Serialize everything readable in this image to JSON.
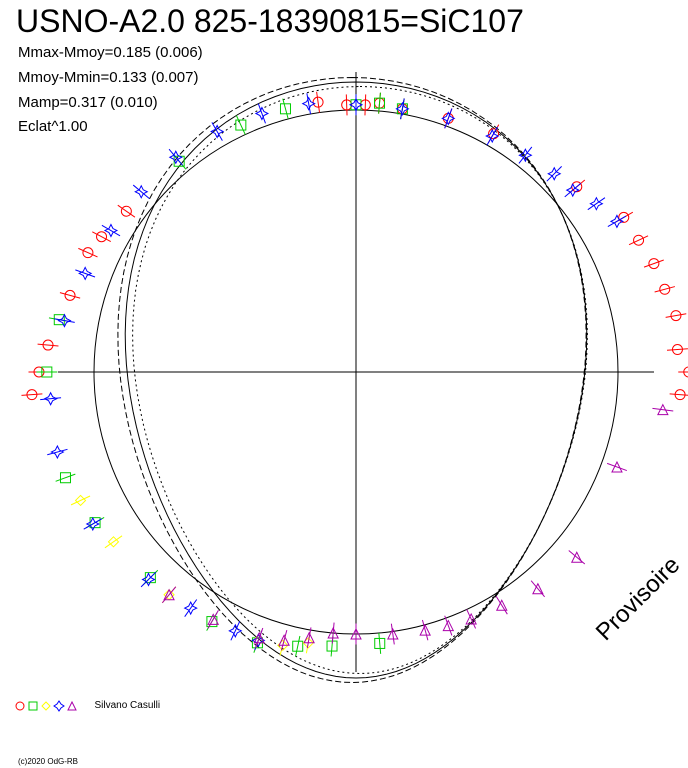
{
  "title": "USNO-A2.0 825-18390815=SiC107",
  "stats": [
    "Mmax-Mmoy=0.185 (0.006)",
    "Mmoy-Mmin=0.133 (0.007)",
    "Mamp=0.317 (0.010)",
    "Eclat^1.00"
  ],
  "legend": {
    "symbols": [
      {
        "shape": "circle",
        "color": "#ff0000",
        "icon": "circle-marker-icon"
      },
      {
        "shape": "square",
        "color": "#00cc00",
        "icon": "square-marker-icon"
      },
      {
        "shape": "diamond",
        "color": "#ffff00",
        "icon": "diamond-marker-icon"
      },
      {
        "shape": "star",
        "color": "#0000ff",
        "icon": "star-marker-icon"
      },
      {
        "shape": "triangle",
        "color": "#aa00aa",
        "icon": "triangle-marker-icon"
      }
    ],
    "observer": "Silvano Casulli"
  },
  "stamp": "Provisoire",
  "copyright": "(c)2020 OdG-RB",
  "chart_data": {
    "type": "scatter",
    "coordinate_system": "polar",
    "title": "USNO-A2.0 825-18390815=SiC107",
    "reference_circle_radius": 1.0,
    "grid": false,
    "axes": "cross",
    "series": [
      {
        "color": "#ff0000",
        "shape": "circle",
        "points": [
          [
            94,
            1.24
          ],
          [
            90,
            1.27
          ],
          [
            86,
            1.23
          ],
          [
            80,
            1.24
          ],
          [
            75,
            1.22
          ],
          [
            70,
            1.21
          ],
          [
            65,
            1.19
          ],
          [
            60,
            1.18
          ],
          [
            50,
            1.1
          ],
          [
            30,
            1.05
          ],
          [
            20,
            1.03
          ],
          [
            10,
            1.02
          ],
          [
            5,
            1.03
          ],
          [
            2,
            1.02
          ],
          [
            -2,
            1.02
          ],
          [
            -8,
            1.04
          ],
          [
            -55,
            1.07
          ],
          [
            -62,
            1.1
          ],
          [
            -66,
            1.12
          ],
          [
            -75,
            1.13
          ],
          [
            -85,
            1.18
          ],
          [
            -90,
            1.21
          ],
          [
            -94,
            1.24
          ]
        ]
      },
      {
        "color": "#00cc00",
        "shape": "square",
        "points": [
          [
            10,
            1.02
          ],
          [
            5,
            1.03
          ],
          [
            0,
            1.02
          ],
          [
            -15,
            1.04
          ],
          [
            -25,
            1.04
          ],
          [
            -40,
            1.05
          ],
          [
            -80,
            1.15
          ],
          [
            -90,
            1.18
          ],
          [
            -110,
            1.18
          ],
          [
            -120,
            1.15
          ],
          [
            -135,
            1.11
          ],
          [
            -150,
            1.1
          ],
          [
            -160,
            1.1
          ],
          [
            -168,
            1.07
          ],
          [
            -175,
            1.05
          ],
          [
            175,
            1.04
          ]
        ]
      },
      {
        "color": "#ffff00",
        "shape": "diamond",
        "points": [
          [
            -115,
            1.16
          ],
          [
            -125,
            1.13
          ],
          [
            -140,
            1.11
          ],
          [
            -160,
            1.09
          ],
          [
            -165,
            1.08
          ],
          [
            -170,
            1.05
          ]
        ]
      },
      {
        "color": "#0000ff",
        "shape": "star",
        "points": [
          [
            60,
            1.15
          ],
          [
            55,
            1.12
          ],
          [
            50,
            1.08
          ],
          [
            45,
            1.07
          ],
          [
            38,
            1.05
          ],
          [
            30,
            1.04
          ],
          [
            20,
            1.03
          ],
          [
            10,
            1.02
          ],
          [
            0,
            1.02
          ],
          [
            -10,
            1.04
          ],
          [
            -20,
            1.05
          ],
          [
            -30,
            1.06
          ],
          [
            -40,
            1.07
          ],
          [
            -50,
            1.07
          ],
          [
            -60,
            1.08
          ],
          [
            -70,
            1.1
          ],
          [
            -80,
            1.13
          ],
          [
            -95,
            1.17
          ],
          [
            -105,
            1.18
          ],
          [
            -120,
            1.16
          ],
          [
            -135,
            1.12
          ],
          [
            -145,
            1.1
          ],
          [
            -155,
            1.09
          ],
          [
            -160,
            1.09
          ]
        ]
      },
      {
        "color": "#aa00aa",
        "shape": "triangle",
        "points": [
          [
            97,
            1.18
          ],
          [
            110,
            1.06
          ],
          [
            130,
            1.1
          ],
          [
            140,
            1.08
          ],
          [
            148,
            1.05
          ],
          [
            155,
            1.04
          ],
          [
            160,
            1.03
          ],
          [
            165,
            1.02
          ],
          [
            172,
            1.01
          ],
          [
            180,
            1.0
          ],
          [
            -175,
            1.0
          ],
          [
            -170,
            1.03
          ],
          [
            -165,
            1.06
          ],
          [
            -160,
            1.08
          ],
          [
            -150,
            1.09
          ],
          [
            -140,
            1.11
          ]
        ]
      }
    ]
  }
}
